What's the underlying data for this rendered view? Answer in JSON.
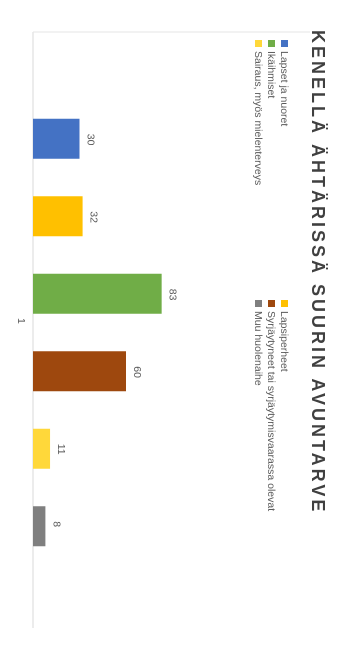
{
  "chart_data": {
    "type": "bar",
    "title": "KENELLÄ ÄHTÄRISSÄ SUURIN AVUNTARVE",
    "categories": [
      "1"
    ],
    "ylim": [
      0,
      100
    ],
    "grid": false,
    "legend_position": "top",
    "series": [
      {
        "name": "Lapset ja nuoret",
        "value": 30,
        "color": "#4472C4"
      },
      {
        "name": "Lapsiperheet",
        "value": 32,
        "color": "#FFC000"
      },
      {
        "name": "Ikäihmiset",
        "value": 83,
        "color": "#70AD47"
      },
      {
        "name": "Syrjäytyneet tai syrjäytymisvaarassa olevat",
        "value": 60,
        "color": "#9E480E"
      },
      {
        "name": "Sairaus, myös mielenterveys",
        "value": 11,
        "color": "#FFD83A"
      },
      {
        "name": "Muu huolenaihe",
        "value": 8,
        "color": "#7F7F7F"
      }
    ]
  }
}
